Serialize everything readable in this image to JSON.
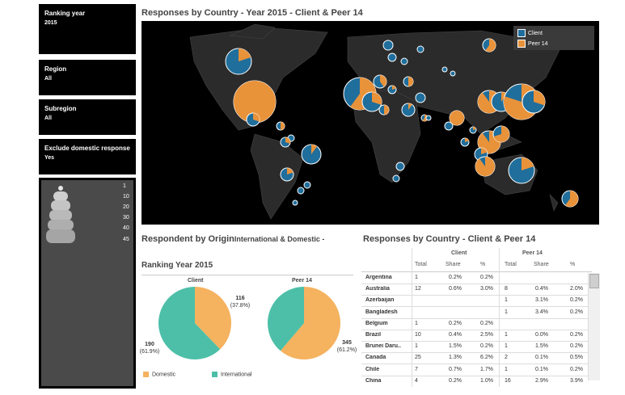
{
  "filters": [
    {
      "title": "Ranking year",
      "value": "2015"
    },
    {
      "title": "Region",
      "value": "All"
    },
    {
      "title": "Subregion",
      "value": "All"
    },
    {
      "title": "Exclude domestic response..",
      "value": "Yes"
    }
  ],
  "size_legend": [
    "1",
    "10",
    "20",
    "30",
    "40",
    "45"
  ],
  "map": {
    "title": "Responses by Country - Year 2015 - Client & Peer 14",
    "legend": [
      {
        "label": "Client",
        "color": "#1f6e9c"
      },
      {
        "label": "Peer 14",
        "color": "#e8923a"
      }
    ]
  },
  "origin": {
    "title_a": "Respondent by Origin",
    "title_b": "International & Domestic -",
    "title_c": "Ranking Year 2015",
    "client": {
      "label": "Client",
      "domestic_count": "116",
      "domestic_pct": "(37.8%)",
      "intl_count": "190",
      "intl_pct": "(61.9%)",
      "domestic_share": 0.378
    },
    "peer": {
      "label": "Peer 14",
      "domestic_count": "345",
      "domestic_pct": "(61.2%)",
      "domestic_share": 0.612
    },
    "legend": [
      {
        "label": "Domestic",
        "color": "#f5b25f"
      },
      {
        "label": "International",
        "color": "#4dbfa8"
      }
    ]
  },
  "table": {
    "title": "Responses by Country - Client & Peer 14",
    "groups": [
      "Client",
      "Peer 14"
    ],
    "columns": [
      "Total",
      "Share",
      "%",
      "Total",
      "Share",
      "%"
    ],
    "rows": [
      {
        "country": "Argentina",
        "c": [
          "1",
          "0.2%",
          "0.2%",
          "",
          "",
          ""
        ]
      },
      {
        "country": "Australia",
        "c": [
          "12",
          "0.6%",
          "3.0%",
          "8",
          "0.4%",
          "2.0%"
        ]
      },
      {
        "country": "Azerbaijan",
        "c": [
          "",
          "",
          "",
          "1",
          "3.1%",
          "0.2%"
        ]
      },
      {
        "country": "Bangladesh",
        "c": [
          "",
          "",
          "",
          "1",
          "3.4%",
          "0.2%"
        ]
      },
      {
        "country": "Belgium",
        "c": [
          "1",
          "0.2%",
          "0.2%",
          "",
          "",
          ""
        ]
      },
      {
        "country": "Brazil",
        "c": [
          "10",
          "0.4%",
          "2.5%",
          "1",
          "0.0%",
          "0.2%"
        ]
      },
      {
        "country": "Brunei Daru..",
        "c": [
          "1",
          "1.5%",
          "0.2%",
          "1",
          "1.5%",
          "0.2%"
        ]
      },
      {
        "country": "Canada",
        "c": [
          "25",
          "1.3%",
          "6.2%",
          "2",
          "0.1%",
          "0.5%"
        ]
      },
      {
        "country": "Chile",
        "c": [
          "7",
          "0.7%",
          "1.7%",
          "1",
          "0.1%",
          "0.2%"
        ]
      },
      {
        "country": "China",
        "c": [
          "4",
          "0.2%",
          "1.0%",
          "16",
          "2.9%",
          "3.9%"
        ]
      }
    ]
  },
  "colors": {
    "client": "#1f6e9c",
    "peer": "#e8923a",
    "domestic": "#f5b25f",
    "international": "#4dbfa8"
  }
}
